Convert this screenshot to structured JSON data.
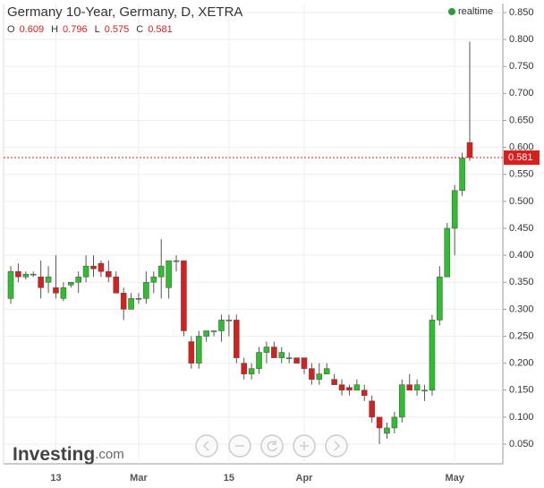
{
  "chart_data": {
    "type": "candlestick",
    "title": "Germany 10-Year, Germany, D, XETRA",
    "status": "realtime",
    "logo": [
      "Investing",
      ".com"
    ],
    "ohlc_labels": [
      "O",
      "H",
      "L",
      "C"
    ],
    "categories": [
      null,
      null,
      null,
      null,
      null,
      null,
      "13",
      null,
      null,
      null,
      null,
      null,
      null,
      null,
      null,
      null,
      null,
      "Mar",
      null,
      null,
      null,
      null,
      null,
      null,
      null,
      null,
      null,
      null,
      null,
      "15",
      null,
      null,
      null,
      null,
      null,
      null,
      null,
      null,
      null,
      "Apr",
      null,
      null,
      null,
      null,
      null,
      null,
      null,
      null,
      null,
      null,
      null,
      null,
      null,
      null,
      null,
      null,
      null,
      null,
      null,
      "May",
      null,
      null
    ],
    "ohlc": [
      [
        0.32,
        0.38,
        0.31,
        0.37
      ],
      [
        0.37,
        0.385,
        0.35,
        0.36
      ],
      [
        0.36,
        0.37,
        0.355,
        0.365
      ],
      [
        0.365,
        0.37,
        0.36,
        0.365
      ],
      [
        0.36,
        0.39,
        0.32,
        0.34
      ],
      [
        0.35,
        0.38,
        0.33,
        0.36
      ],
      [
        0.34,
        0.4,
        0.32,
        0.33
      ],
      [
        0.32,
        0.35,
        0.315,
        0.34
      ],
      [
        0.345,
        0.35,
        0.34,
        0.35
      ],
      [
        0.35,
        0.37,
        0.33,
        0.36
      ],
      [
        0.36,
        0.4,
        0.35,
        0.38
      ],
      [
        0.38,
        0.4,
        0.36,
        0.375
      ],
      [
        0.385,
        0.39,
        0.36,
        0.37
      ],
      [
        0.37,
        0.39,
        0.35,
        0.36
      ],
      [
        0.36,
        0.37,
        0.33,
        0.33
      ],
      [
        0.33,
        0.34,
        0.28,
        0.3
      ],
      [
        0.3,
        0.33,
        0.3,
        0.32
      ],
      [
        0.32,
        0.33,
        0.31,
        0.32
      ],
      [
        0.32,
        0.37,
        0.31,
        0.35
      ],
      [
        0.35,
        0.37,
        0.33,
        0.36
      ],
      [
        0.36,
        0.43,
        0.32,
        0.38
      ],
      [
        0.34,
        0.39,
        0.32,
        0.39
      ],
      [
        0.39,
        0.4,
        0.37,
        0.39
      ],
      [
        0.39,
        0.39,
        0.25,
        0.26
      ],
      [
        0.24,
        0.25,
        0.19,
        0.2
      ],
      [
        0.2,
        0.26,
        0.19,
        0.25
      ],
      [
        0.25,
        0.26,
        0.24,
        0.26
      ],
      [
        0.26,
        0.26,
        0.25,
        0.26
      ],
      [
        0.26,
        0.29,
        0.24,
        0.28
      ],
      [
        0.28,
        0.29,
        0.25,
        0.28
      ],
      [
        0.28,
        0.29,
        0.2,
        0.21
      ],
      [
        0.2,
        0.21,
        0.17,
        0.18
      ],
      [
        0.18,
        0.2,
        0.17,
        0.19
      ],
      [
        0.19,
        0.23,
        0.18,
        0.22
      ],
      [
        0.22,
        0.24,
        0.2,
        0.23
      ],
      [
        0.23,
        0.24,
        0.21,
        0.21
      ],
      [
        0.21,
        0.23,
        0.2,
        0.22
      ],
      [
        0.21,
        0.22,
        0.2,
        0.21
      ],
      [
        0.21,
        0.21,
        0.2,
        0.2
      ],
      [
        0.21,
        0.21,
        0.18,
        0.19
      ],
      [
        0.19,
        0.2,
        0.16,
        0.17
      ],
      [
        0.17,
        0.2,
        0.16,
        0.18
      ],
      [
        0.18,
        0.2,
        0.18,
        0.19
      ],
      [
        0.17,
        0.18,
        0.16,
        0.16
      ],
      [
        0.16,
        0.17,
        0.14,
        0.15
      ],
      [
        0.155,
        0.16,
        0.14,
        0.15
      ],
      [
        0.15,
        0.17,
        0.15,
        0.16
      ],
      [
        0.15,
        0.16,
        0.13,
        0.14
      ],
      [
        0.13,
        0.14,
        0.09,
        0.1
      ],
      [
        0.1,
        0.1,
        0.05,
        0.08
      ],
      [
        0.07,
        0.09,
        0.06,
        0.08
      ],
      [
        0.08,
        0.11,
        0.07,
        0.1
      ],
      [
        0.1,
        0.17,
        0.09,
        0.16
      ],
      [
        0.16,
        0.18,
        0.15,
        0.15
      ],
      [
        0.15,
        0.17,
        0.14,
        0.16
      ],
      [
        0.15,
        0.16,
        0.13,
        0.15
      ],
      [
        0.15,
        0.29,
        0.14,
        0.28
      ],
      [
        0.28,
        0.38,
        0.27,
        0.36
      ],
      [
        0.36,
        0.46,
        0.36,
        0.45
      ],
      [
        0.45,
        0.53,
        0.4,
        0.52
      ],
      [
        0.52,
        0.59,
        0.51,
        0.58
      ],
      [
        0.609,
        0.796,
        0.575,
        0.581
      ]
    ],
    "up_color": "#2dbf2d",
    "down_color": "#d91e1e",
    "ylim": [
      0.0135,
      0.8665
    ],
    "yticks": [
      {
        "value": 0.05,
        "label": "0.050"
      },
      {
        "value": 0.1,
        "label": "0.100"
      },
      {
        "value": 0.15,
        "label": "0.150"
      },
      {
        "value": 0.2,
        "label": "0.200"
      },
      {
        "value": 0.25,
        "label": "0.250"
      },
      {
        "value": 0.3,
        "label": "0.300"
      },
      {
        "value": 0.35,
        "label": "0.350"
      },
      {
        "value": 0.4,
        "label": "0.400"
      },
      {
        "value": 0.45,
        "label": "0.450"
      },
      {
        "value": 0.5,
        "label": "0.500"
      },
      {
        "value": 0.55,
        "label": "0.550"
      },
      {
        "value": 0.6,
        "label": "0.600"
      },
      {
        "value": 0.65,
        "label": "0.650"
      },
      {
        "value": 0.7,
        "label": "0.700"
      },
      {
        "value": 0.75,
        "label": "0.750"
      },
      {
        "value": 0.8,
        "label": "0.800"
      },
      {
        "value": 0.85,
        "label": "0.850"
      }
    ],
    "grid": true
  }
}
